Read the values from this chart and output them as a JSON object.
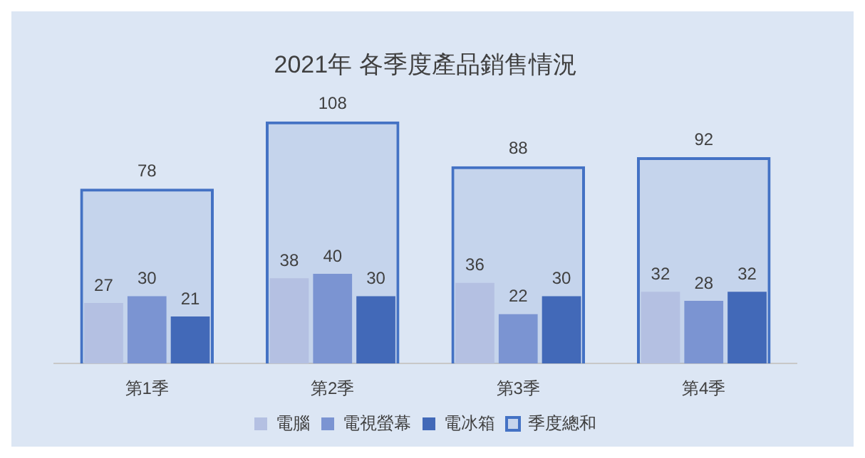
{
  "chart_data": {
    "type": "bar",
    "title": "2021年 各季度產品銷售情況",
    "categories": [
      "第1季",
      "第2季",
      "第3季",
      "第4季"
    ],
    "series": [
      {
        "name": "電腦",
        "color": "#b4c0e2",
        "values": [
          27,
          38,
          36,
          32
        ]
      },
      {
        "name": "電視螢幕",
        "color": "#7b94d2",
        "values": [
          30,
          40,
          22,
          28
        ]
      },
      {
        "name": "電冰箱",
        "color": "#4269b8",
        "values": [
          21,
          30,
          30,
          32
        ]
      },
      {
        "name": "季度總和",
        "color": "#4472c4",
        "values": [
          78,
          108,
          88,
          92
        ]
      }
    ],
    "data_labels": true,
    "legend": "bottom",
    "grid": false
  }
}
